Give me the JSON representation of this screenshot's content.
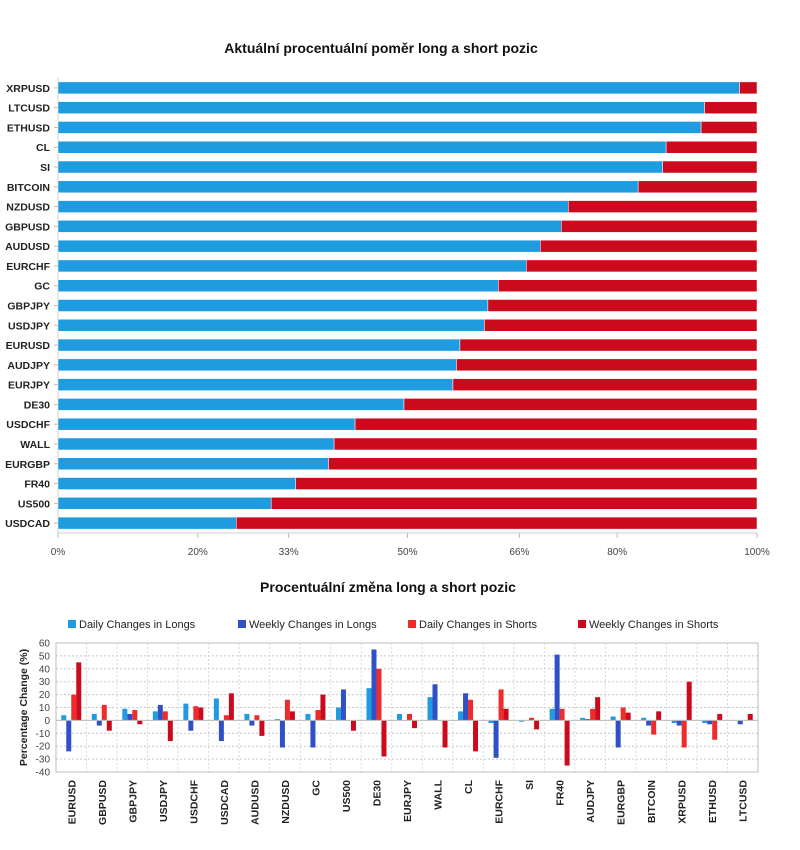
{
  "colors": {
    "long": "#1f9be0",
    "short": "#cc0a1e",
    "daily_long": "#1f9be0",
    "weekly_long": "#3050c8",
    "daily_short": "#ef2b2b",
    "weekly_short": "#cc0a1e"
  },
  "chart_data": [
    {
      "type": "bar",
      "orientation": "horizontal",
      "stacked": "percent",
      "title": "Aktuální procentuální poměr long a short pozic",
      "categories": [
        "XRPUSD",
        "LTCUSD",
        "ETHUSD",
        "CL",
        "SI",
        "BITCOIN",
        "NZDUSD",
        "GBPUSD",
        "AUDUSD",
        "EURCHF",
        "GC",
        "GBPJPY",
        "USDJPY",
        "EURUSD",
        "AUDJPY",
        "EURJPY",
        "DE30",
        "USDCHF",
        "WALL",
        "EURGBP",
        "FR40",
        "US500",
        "USDCAD"
      ],
      "series": [
        {
          "key": "long",
          "values": [
            97.5,
            92.5,
            92,
            87,
            86.5,
            83,
            73,
            72,
            69,
            67,
            63,
            61.5,
            61,
            57.5,
            57,
            56.5,
            49.5,
            42.5,
            39.5,
            38.7,
            34,
            30.5,
            25.5
          ]
        },
        {
          "key": "short",
          "values": [
            2.5,
            7.5,
            8,
            13,
            13.5,
            17,
            27,
            28,
            31,
            33,
            37,
            38.5,
            39,
            42.5,
            43,
            43.5,
            50.5,
            57.5,
            60.5,
            61.3,
            66,
            69.5,
            74.5
          ]
        }
      ],
      "x_ticks": [
        "0%",
        "20%",
        "33%",
        "50%",
        "66%",
        "80%",
        "100%"
      ],
      "x_tick_values": [
        0,
        20,
        33,
        50,
        66,
        80,
        100
      ],
      "xlim": [
        0,
        100
      ]
    },
    {
      "type": "bar",
      "title": "Procentuální změna long a short pozic",
      "ylabel": "Percentage Change (%)",
      "ylim": [
        -40,
        60
      ],
      "y_ticks": [
        60,
        50,
        40,
        30,
        20,
        10,
        0,
        -10,
        -20,
        -30,
        -40
      ],
      "legend_position": "top",
      "grid": true,
      "categories": [
        "EURUSD",
        "GBPUSD",
        "GBPJPY",
        "USDJPY",
        "USDCHF",
        "USDCAD",
        "AUDUSD",
        "NZDUSD",
        "GC",
        "US500",
        "DE30",
        "EURJPY",
        "WALL",
        "CL",
        "EURCHF",
        "SI",
        "FR40",
        "AUDJPY",
        "EURGBP",
        "BITCOIN",
        "XRPUSD",
        "ETHUSD",
        "LTCUSD"
      ],
      "series": [
        {
          "name": "Daily Changes in Longs",
          "color_key": "daily_long",
          "values": [
            4,
            5,
            9,
            7,
            13,
            17,
            5,
            1,
            5,
            10,
            25,
            5,
            18,
            7,
            -2,
            -1,
            9,
            2,
            3,
            2,
            -2,
            -2,
            0
          ]
        },
        {
          "name": "Weekly Changes in Longs",
          "color_key": "weekly_long",
          "values": [
            -24,
            -4,
            5,
            12,
            -8,
            -16,
            -4,
            -21,
            -21,
            24,
            55,
            0,
            28,
            21,
            -29,
            0,
            51,
            1,
            -21,
            -4,
            -4,
            -3,
            -3
          ]
        },
        {
          "name": "Daily Changes in Shorts",
          "color_key": "daily_short",
          "values": [
            20,
            12,
            8,
            7,
            11,
            4,
            4,
            16,
            8,
            0,
            40,
            5,
            0,
            16,
            24,
            2,
            9,
            9,
            10,
            -11,
            -21,
            -15,
            0
          ]
        },
        {
          "name": "Weekly Changes in Shorts",
          "color_key": "weekly_short",
          "values": [
            45,
            -8,
            -3,
            -16,
            10,
            21,
            -12,
            7,
            20,
            -8,
            -28,
            -6,
            -21,
            -24,
            9,
            -7,
            -35,
            18,
            6,
            7,
            30,
            5,
            5
          ]
        }
      ]
    }
  ]
}
